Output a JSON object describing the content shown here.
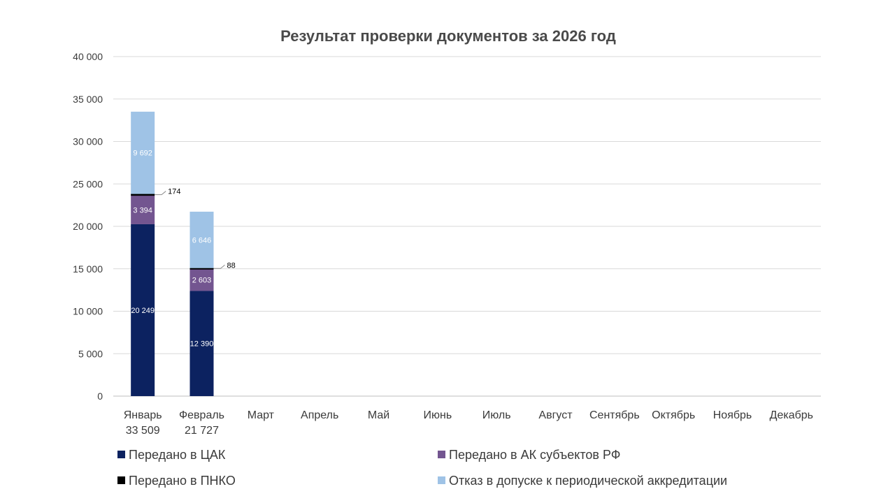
{
  "chart_data": {
    "type": "bar",
    "stacked": true,
    "title": "Результат проверки документов за 2026 год",
    "xlabel": "",
    "ylabel": "",
    "ylim": [
      0,
      40000
    ],
    "yticks": [
      0,
      5000,
      10000,
      15000,
      20000,
      25000,
      30000,
      35000,
      40000
    ],
    "ytick_labels": [
      "0",
      "5 000",
      "10 000",
      "15 000",
      "20 000",
      "25 000",
      "30 000",
      "35 000",
      "40 000"
    ],
    "grid": true,
    "legend_position": "bottom",
    "categories": [
      "Январь",
      "Февраль",
      "Март",
      "Апрель",
      "Май",
      "Июнь",
      "Июль",
      "Август",
      "Сентябрь",
      "Октябрь",
      "Ноябрь",
      "Декабрь"
    ],
    "category_totals": [
      "33 509",
      "21 727",
      "",
      "",
      "",
      "",
      "",
      "",
      "",
      "",
      "",
      ""
    ],
    "series": [
      {
        "name": "Передано в ЦАК",
        "color": "#0c2260",
        "label_color": "#ffffff",
        "values": [
          20249,
          12390,
          null,
          null,
          null,
          null,
          null,
          null,
          null,
          null,
          null,
          null
        ],
        "labels": [
          "20 249",
          "12 390",
          "",
          "",
          "",
          "",
          "",
          "",
          "",
          "",
          "",
          ""
        ]
      },
      {
        "name": "Передано в АК субъектов РФ",
        "color": "#735590",
        "label_color": "#ffffff",
        "values": [
          3394,
          2603,
          null,
          null,
          null,
          null,
          null,
          null,
          null,
          null,
          null,
          null
        ],
        "labels": [
          "3 394",
          "2 603",
          "",
          "",
          "",
          "",
          "",
          "",
          "",
          "",
          "",
          ""
        ]
      },
      {
        "name": "Передано в ПНКО",
        "color": "#000000",
        "label_color": "#000000",
        "callout": true,
        "values": [
          174,
          88,
          null,
          null,
          null,
          null,
          null,
          null,
          null,
          null,
          null,
          null
        ],
        "labels": [
          "174",
          "88",
          "",
          "",
          "",
          "",
          "",
          "",
          "",
          "",
          "",
          ""
        ]
      },
      {
        "name": "Отказ в допуске к периодической аккредитации",
        "color": "#9fc3e6",
        "label_color": "#ffffff",
        "values": [
          9692,
          6646,
          null,
          null,
          null,
          null,
          null,
          null,
          null,
          null,
          null,
          null
        ],
        "labels": [
          "9 692",
          "6 646",
          "",
          "",
          "",
          "",
          "",
          "",
          "",
          "",
          "",
          ""
        ]
      }
    ]
  }
}
